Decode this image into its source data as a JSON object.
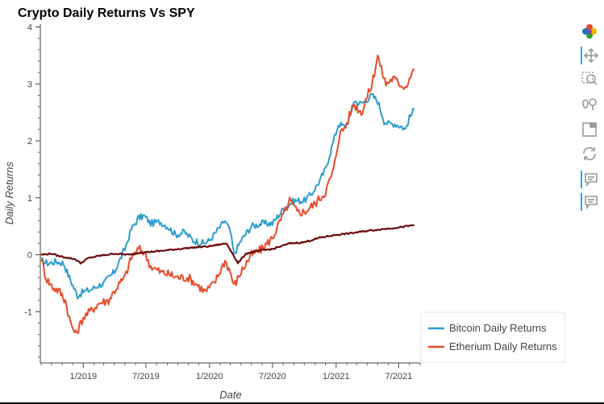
{
  "chart_data": {
    "type": "line",
    "title": "Crypto Daily Returns Vs SPY",
    "xlabel": "Date",
    "ylabel": "Daily Returns",
    "ylim": [
      -1.9,
      4.05
    ],
    "xlim": [
      "2018-09-01",
      "2021-09-01"
    ],
    "yticks": [
      -1,
      0,
      1,
      2,
      3,
      4
    ],
    "xticks": [
      {
        "date": "2019-01-01",
        "label": "1/2019"
      },
      {
        "date": "2019-07-01",
        "label": "7/2019"
      },
      {
        "date": "2020-01-01",
        "label": "1/2020"
      },
      {
        "date": "2020-07-01",
        "label": "7/2020"
      },
      {
        "date": "2021-01-01",
        "label": "1/2021"
      },
      {
        "date": "2021-07-01",
        "label": "7/2021"
      }
    ],
    "grid": false,
    "legend_position": "bottom-right-outside",
    "series": [
      {
        "name": "Bitcoin Daily Returns",
        "color": "#2b9ccc",
        "points": [
          [
            "2018-09-01",
            -0.1
          ],
          [
            "2018-09-20",
            -0.15
          ],
          [
            "2018-10-15",
            -0.12
          ],
          [
            "2018-11-05",
            -0.15
          ],
          [
            "2018-11-25",
            -0.45
          ],
          [
            "2018-12-15",
            -0.72
          ],
          [
            "2019-01-01",
            -0.65
          ],
          [
            "2019-01-20",
            -0.62
          ],
          [
            "2019-02-10",
            -0.55
          ],
          [
            "2019-03-01",
            -0.5
          ],
          [
            "2019-04-01",
            -0.3
          ],
          [
            "2019-05-01",
            0.1
          ],
          [
            "2019-05-20",
            0.45
          ],
          [
            "2019-06-10",
            0.65
          ],
          [
            "2019-06-26",
            0.68
          ],
          [
            "2019-07-15",
            0.55
          ],
          [
            "2019-08-10",
            0.58
          ],
          [
            "2019-09-01",
            0.5
          ],
          [
            "2019-09-25",
            0.35
          ],
          [
            "2019-10-20",
            0.4
          ],
          [
            "2019-11-15",
            0.25
          ],
          [
            "2019-12-15",
            0.2
          ],
          [
            "2020-01-01",
            0.25
          ],
          [
            "2020-01-20",
            0.4
          ],
          [
            "2020-02-15",
            0.6
          ],
          [
            "2020-03-01",
            0.4
          ],
          [
            "2020-03-12",
            0.0
          ],
          [
            "2020-04-01",
            0.25
          ],
          [
            "2020-05-01",
            0.5
          ],
          [
            "2020-06-01",
            0.55
          ],
          [
            "2020-07-01",
            0.55
          ],
          [
            "2020-08-01",
            0.8
          ],
          [
            "2020-09-01",
            0.95
          ],
          [
            "2020-10-01",
            0.95
          ],
          [
            "2020-10-20",
            1.05
          ],
          [
            "2020-11-15",
            1.3
          ],
          [
            "2020-12-01",
            1.5
          ],
          [
            "2020-12-20",
            1.9
          ],
          [
            "2021-01-08",
            2.3
          ],
          [
            "2021-01-25",
            2.25
          ],
          [
            "2021-02-10",
            2.4
          ],
          [
            "2021-02-21",
            2.7
          ],
          [
            "2021-03-15",
            2.65
          ],
          [
            "2021-04-14",
            2.8
          ],
          [
            "2021-05-01",
            2.7
          ],
          [
            "2021-05-20",
            2.35
          ],
          [
            "2021-06-01",
            2.3
          ],
          [
            "2021-06-20",
            2.3
          ],
          [
            "2021-07-10",
            2.25
          ],
          [
            "2021-07-20",
            2.2
          ],
          [
            "2021-08-01",
            2.4
          ],
          [
            "2021-08-15",
            2.55
          ]
        ]
      },
      {
        "name": "Etherium Daily Returns",
        "color": "#e84b2a",
        "points": [
          [
            "2018-09-01",
            -0.05
          ],
          [
            "2018-09-15",
            -0.4
          ],
          [
            "2018-10-01",
            -0.55
          ],
          [
            "2018-10-25",
            -0.65
          ],
          [
            "2018-11-10",
            -0.8
          ],
          [
            "2018-11-25",
            -1.2
          ],
          [
            "2018-12-10",
            -1.4
          ],
          [
            "2019-01-01",
            -1.1
          ],
          [
            "2019-01-20",
            -1.0
          ],
          [
            "2019-02-15",
            -0.85
          ],
          [
            "2019-03-15",
            -0.8
          ],
          [
            "2019-04-10",
            -0.55
          ],
          [
            "2019-05-01",
            -0.4
          ],
          [
            "2019-05-20",
            -0.05
          ],
          [
            "2019-06-10",
            0.1
          ],
          [
            "2019-06-26",
            0.05
          ],
          [
            "2019-07-15",
            -0.2
          ],
          [
            "2019-08-10",
            -0.3
          ],
          [
            "2019-09-10",
            -0.35
          ],
          [
            "2019-10-01",
            -0.4
          ],
          [
            "2019-11-01",
            -0.4
          ],
          [
            "2019-12-01",
            -0.55
          ],
          [
            "2019-12-20",
            -0.65
          ],
          [
            "2020-01-15",
            -0.5
          ],
          [
            "2020-02-15",
            -0.1
          ],
          [
            "2020-03-01",
            -0.3
          ],
          [
            "2020-03-12",
            -0.55
          ],
          [
            "2020-04-01",
            -0.3
          ],
          [
            "2020-05-01",
            0.0
          ],
          [
            "2020-06-01",
            0.1
          ],
          [
            "2020-07-01",
            0.3
          ],
          [
            "2020-08-01",
            0.7
          ],
          [
            "2020-08-20",
            0.95
          ],
          [
            "2020-09-10",
            0.75
          ],
          [
            "2020-10-01",
            0.75
          ],
          [
            "2020-11-01",
            0.9
          ],
          [
            "2020-12-01",
            1.1
          ],
          [
            "2020-12-25",
            1.5
          ],
          [
            "2021-01-10",
            2.1
          ],
          [
            "2021-02-01",
            2.3
          ],
          [
            "2021-02-20",
            2.65
          ],
          [
            "2021-03-15",
            2.5
          ],
          [
            "2021-04-15",
            3.0
          ],
          [
            "2021-05-01",
            3.5
          ],
          [
            "2021-05-12",
            3.25
          ],
          [
            "2021-05-25",
            3.0
          ],
          [
            "2021-06-15",
            3.1
          ],
          [
            "2021-07-05",
            3.0
          ],
          [
            "2021-07-20",
            2.95
          ],
          [
            "2021-08-01",
            3.1
          ],
          [
            "2021-08-15",
            3.25
          ]
        ]
      },
      {
        "name": "",
        "color": "#6b0a0a",
        "points": [
          [
            "2018-09-01",
            0.0
          ],
          [
            "2018-10-01",
            0.02
          ],
          [
            "2018-10-20",
            -0.02
          ],
          [
            "2018-11-15",
            -0.05
          ],
          [
            "2018-12-10",
            -0.08
          ],
          [
            "2018-12-24",
            -0.15
          ],
          [
            "2019-01-15",
            -0.06
          ],
          [
            "2019-02-15",
            -0.02
          ],
          [
            "2019-04-01",
            0.02
          ],
          [
            "2019-05-15",
            0.0
          ],
          [
            "2019-06-15",
            0.04
          ],
          [
            "2019-08-01",
            0.06
          ],
          [
            "2019-09-01",
            0.08
          ],
          [
            "2019-11-01",
            0.12
          ],
          [
            "2020-01-01",
            0.15
          ],
          [
            "2020-02-19",
            0.2
          ],
          [
            "2020-03-05",
            0.05
          ],
          [
            "2020-03-23",
            -0.15
          ],
          [
            "2020-04-15",
            0.02
          ],
          [
            "2020-06-01",
            0.08
          ],
          [
            "2020-07-01",
            0.1
          ],
          [
            "2020-08-20",
            0.2
          ],
          [
            "2020-10-01",
            0.22
          ],
          [
            "2020-11-15",
            0.3
          ],
          [
            "2021-01-01",
            0.35
          ],
          [
            "2021-02-15",
            0.38
          ],
          [
            "2021-04-01",
            0.42
          ],
          [
            "2021-05-15",
            0.45
          ],
          [
            "2021-07-01",
            0.48
          ],
          [
            "2021-08-15",
            0.52
          ]
        ]
      }
    ]
  },
  "toolbar": {
    "accent_color": "#26aae1",
    "tools": [
      {
        "name": "bokeh-logo-icon",
        "interactable": false
      },
      {
        "name": "pan-tool-icon",
        "interactable": true
      },
      {
        "name": "box-zoom-tool-icon",
        "interactable": true
      },
      {
        "name": "wheel-zoom-tool-icon",
        "interactable": true
      },
      {
        "name": "save-tool-icon",
        "interactable": true
      },
      {
        "name": "reset-tool-icon",
        "interactable": true
      },
      {
        "name": "hover-tool-icon",
        "interactable": true
      },
      {
        "name": "hover-tool-icon",
        "interactable": true
      }
    ]
  }
}
